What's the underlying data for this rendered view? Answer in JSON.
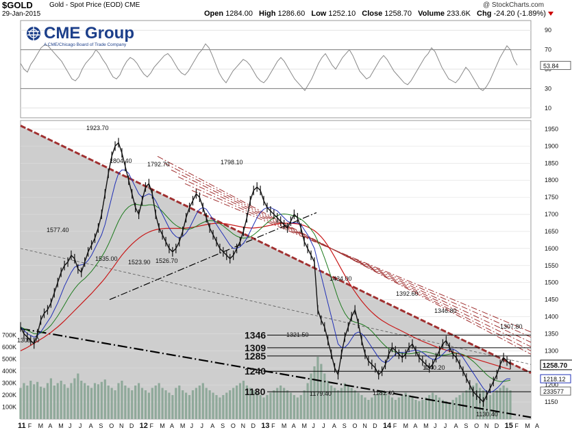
{
  "header": {
    "symbol": "$GOLD",
    "subtitle": "Gold - Spot Price (EOD)  CME",
    "date": "29-Jan-2015",
    "watermark": "@ StockCharts.com",
    "open_label": "Open",
    "open": "1284.00",
    "high_label": "High",
    "high": "1286.60",
    "low_label": "Low",
    "low": "1252.10",
    "close_label": "Close",
    "close": "1258.70",
    "volume_label": "Volume",
    "volume": "233.6K",
    "chg_label": "Chg",
    "chg": "-24.20 (-1.89%)"
  },
  "logo": {
    "name": "CME Group",
    "tagline": "A CME/Chicago Board of Trade Company"
  },
  "colors": {
    "price": "#111111",
    "ma_short": "#1f2fb5",
    "ma_mid": "#1d7a1d",
    "ma_long": "#c81818",
    "fill": "#c9c9c9",
    "volume": "#8fa99a",
    "channel": "#a03030",
    "rsi": "#888888"
  },
  "chart_data": {
    "type": "line",
    "title": "$GOLD Gold - Spot Price (EOD) CME",
    "rsi": {
      "ticks": [
        10,
        30,
        50,
        70,
        90
      ],
      "last_label": "53.84",
      "values": [
        56,
        50,
        47,
        55,
        60,
        66,
        72,
        75,
        74,
        70,
        66,
        62,
        58,
        52,
        46,
        40,
        38,
        42,
        50,
        56,
        60,
        64,
        70,
        66,
        60,
        55,
        48,
        42,
        40,
        44,
        52,
        58,
        62,
        60,
        56,
        50,
        45,
        42,
        46,
        52,
        56,
        60,
        64,
        66,
        62,
        56,
        50,
        46,
        44,
        48,
        54,
        60,
        66,
        70,
        76,
        72,
        64,
        55,
        46,
        40,
        36,
        42,
        48,
        52,
        56,
        60,
        58,
        54,
        48,
        42,
        38,
        36,
        40,
        46,
        52,
        58,
        62,
        58,
        52,
        46,
        40,
        36,
        32,
        28,
        34,
        40,
        48,
        56,
        62,
        66,
        60,
        54,
        50,
        56,
        62,
        66,
        70,
        64,
        56,
        48,
        44,
        40,
        42,
        48,
        54,
        60,
        64,
        60,
        54,
        48,
        44,
        40,
        36,
        34,
        38,
        44,
        50,
        56,
        62,
        66,
        72,
        68,
        60,
        52,
        46,
        40,
        38,
        36,
        40,
        46,
        52,
        48,
        42,
        36,
        30,
        28,
        32,
        38,
        46,
        54,
        62,
        68,
        74,
        70,
        60,
        54
      ]
    },
    "price": {
      "y_ticks": [
        1150,
        1200,
        1250,
        1300,
        1350,
        1400,
        1450,
        1500,
        1550,
        1600,
        1650,
        1700,
        1750,
        1800,
        1850,
        1900,
        1950
      ],
      "close_label": "1258.70",
      "ma_label": "1218.12",
      "values": [
        1370,
        1350,
        1340,
        1330,
        1320,
        1350,
        1390,
        1410,
        1420,
        1440,
        1470,
        1500,
        1530,
        1550,
        1560,
        1580,
        1570,
        1540,
        1530,
        1560,
        1590,
        1610,
        1630,
        1660,
        1700,
        1760,
        1820,
        1870,
        1900,
        1910,
        1880,
        1840,
        1800,
        1760,
        1720,
        1700,
        1740,
        1780,
        1790,
        1760,
        1700,
        1660,
        1640,
        1620,
        1600,
        1590,
        1600,
        1620,
        1650,
        1690,
        1720,
        1740,
        1760,
        1750,
        1720,
        1690,
        1660,
        1640,
        1620,
        1600,
        1590,
        1580,
        1570,
        1580,
        1600,
        1620,
        1650,
        1690,
        1740,
        1770,
        1780,
        1770,
        1740,
        1720,
        1710,
        1700,
        1690,
        1680,
        1670,
        1660,
        1680,
        1700,
        1690,
        1660,
        1620,
        1600,
        1580,
        1560,
        1420,
        1390,
        1370,
        1330,
        1290,
        1250,
        1230,
        1290,
        1340,
        1370,
        1400,
        1420,
        1380,
        1330,
        1290,
        1270,
        1260,
        1250,
        1230,
        1240,
        1260,
        1290,
        1310,
        1300,
        1290,
        1280,
        1290,
        1310,
        1320,
        1300,
        1280,
        1270,
        1260,
        1250,
        1260,
        1280,
        1300,
        1320,
        1330,
        1310,
        1290,
        1280,
        1260,
        1240,
        1220,
        1200,
        1180,
        1170,
        1160,
        1150,
        1170,
        1190,
        1210,
        1230,
        1260,
        1280,
        1270,
        1260
      ],
      "ma50": [
        1370,
        1360,
        1350,
        1345,
        1340,
        1345,
        1355,
        1370,
        1385,
        1400,
        1420,
        1440,
        1465,
        1490,
        1510,
        1530,
        1545,
        1550,
        1552,
        1555,
        1565,
        1580,
        1600,
        1620,
        1640,
        1670,
        1710,
        1750,
        1790,
        1820,
        1830,
        1830,
        1820,
        1800,
        1780,
        1760,
        1750,
        1755,
        1760,
        1755,
        1740,
        1720,
        1700,
        1680,
        1660,
        1645,
        1635,
        1630,
        1635,
        1645,
        1660,
        1680,
        1700,
        1715,
        1720,
        1715,
        1700,
        1685,
        1670,
        1655,
        1640,
        1625,
        1610,
        1600,
        1600,
        1605,
        1615,
        1630,
        1650,
        1670,
        1690,
        1705,
        1715,
        1720,
        1720,
        1715,
        1710,
        1700,
        1690,
        1680,
        1675,
        1675,
        1675,
        1670,
        1655,
        1640,
        1620,
        1600,
        1560,
        1520,
        1480,
        1440,
        1400,
        1360,
        1320,
        1310,
        1310,
        1320,
        1335,
        1350,
        1355,
        1350,
        1340,
        1325,
        1310,
        1295,
        1280,
        1270,
        1265,
        1270,
        1280,
        1290,
        1295,
        1295,
        1295,
        1298,
        1300,
        1302,
        1300,
        1295,
        1288,
        1280,
        1275,
        1275,
        1280,
        1290,
        1300,
        1305,
        1305,
        1300,
        1292,
        1280,
        1265,
        1250,
        1235,
        1220,
        1205,
        1190,
        1180,
        1178,
        1182,
        1190,
        1200,
        1212,
        1218,
        1218
      ],
      "ma100": [
        1370,
        1365,
        1360,
        1355,
        1350,
        1350,
        1352,
        1358,
        1365,
        1375,
        1388,
        1402,
        1418,
        1435,
        1452,
        1468,
        1482,
        1494,
        1504,
        1512,
        1522,
        1533,
        1546,
        1560,
        1575,
        1592,
        1612,
        1634,
        1658,
        1680,
        1698,
        1712,
        1722,
        1728,
        1730,
        1728,
        1726,
        1726,
        1728,
        1728,
        1725,
        1718,
        1708,
        1697,
        1686,
        1676,
        1668,
        1662,
        1658,
        1656,
        1657,
        1660,
        1665,
        1671,
        1676,
        1680,
        1682,
        1681,
        1678,
        1673,
        1666,
        1658,
        1650,
        1642,
        1636,
        1632,
        1630,
        1631,
        1634,
        1640,
        1648,
        1657,
        1666,
        1675,
        1683,
        1690,
        1696,
        1700,
        1701,
        1700,
        1698,
        1695,
        1691,
        1686,
        1678,
        1668,
        1656,
        1642,
        1622,
        1598,
        1572,
        1544,
        1514,
        1484,
        1454,
        1430,
        1410,
        1396,
        1388,
        1384,
        1381,
        1378,
        1373,
        1366,
        1357,
        1346,
        1335,
        1324,
        1314,
        1306,
        1300,
        1296,
        1294,
        1292,
        1291,
        1291,
        1292,
        1294,
        1296,
        1297,
        1297,
        1295,
        1292,
        1289,
        1287,
        1287,
        1288,
        1290,
        1292,
        1293,
        1292,
        1289,
        1284,
        1277,
        1269,
        1260,
        1250,
        1240,
        1230,
        1222,
        1216,
        1212,
        1210,
        1210,
        1212,
        1214
      ],
      "ma200": [
        1300,
        1305,
        1310,
        1316,
        1322,
        1328,
        1334,
        1340,
        1347,
        1354,
        1362,
        1370,
        1379,
        1388,
        1398,
        1408,
        1418,
        1428,
        1438,
        1448,
        1458,
        1468,
        1479,
        1490,
        1501,
        1513,
        1526,
        1539,
        1553,
        1567,
        1580,
        1592,
        1603,
        1613,
        1622,
        1630,
        1637,
        1643,
        1648,
        1652,
        1655,
        1657,
        1658,
        1659,
        1659,
        1659,
        1659,
        1659,
        1659,
        1660,
        1661,
        1662,
        1664,
        1666,
        1668,
        1670,
        1672,
        1673,
        1674,
        1674,
        1673,
        1672,
        1670,
        1668,
        1666,
        1664,
        1662,
        1661,
        1660,
        1660,
        1661,
        1662,
        1664,
        1666,
        1668,
        1670,
        1672,
        1673,
        1674,
        1674,
        1674,
        1673,
        1672,
        1670,
        1667,
        1663,
        1658,
        1652,
        1644,
        1634,
        1622,
        1608,
        1592,
        1575,
        1557,
        1539,
        1521,
        1504,
        1488,
        1473,
        1459,
        1446,
        1434,
        1423,
        1413,
        1404,
        1396,
        1389,
        1383,
        1377,
        1372,
        1367,
        1362,
        1357,
        1352,
        1347,
        1342,
        1337,
        1332,
        1328,
        1324,
        1320,
        1316,
        1312,
        1308,
        1305,
        1302,
        1299,
        1296,
        1293,
        1290,
        1287,
        1284,
        1281,
        1278,
        1275,
        1272,
        1269,
        1266,
        1263,
        1260,
        1257,
        1254,
        1251,
        1248,
        1246
      ]
    },
    "price_annotations": [
      "1923.70",
      "1804.40",
      "1792.70",
      "1798.10",
      "1577.40",
      "1535.00",
      "1523.90",
      "1526.70",
      "1434.00",
      "1392.60",
      "1346.80",
      "1307.80",
      "1321.50",
      "1240.20",
      "1179.40",
      "1181.40",
      "1130.40",
      "1309.10"
    ],
    "levels": [
      {
        "label": "1346",
        "value": 1346
      },
      {
        "label": "1309",
        "value": 1309
      },
      {
        "label": "1285",
        "value": 1285
      },
      {
        "label": "1240",
        "value": 1240
      },
      {
        "label": "1180",
        "value": 1180
      }
    ],
    "volume": {
      "ticks": [
        "100K",
        "200K",
        "300K",
        "400K",
        "500K",
        "600K",
        "700K"
      ],
      "tick_values": [
        100,
        200,
        300,
        400,
        500,
        600,
        700
      ],
      "last_label": "233577",
      "values": [
        260,
        300,
        280,
        320,
        290,
        310,
        270,
        260,
        300,
        340,
        280,
        300,
        320,
        290,
        260,
        300,
        340,
        380,
        320,
        300,
        280,
        260,
        300,
        290,
        310,
        330,
        280,
        260,
        240,
        300,
        320,
        280,
        260,
        240,
        280,
        300,
        260,
        240,
        220,
        260,
        280,
        300,
        260,
        240,
        220,
        200,
        260,
        280,
        240,
        220,
        200,
        240,
        260,
        280,
        300,
        260,
        240,
        220,
        200,
        180,
        200,
        220,
        240,
        260,
        280,
        300,
        320,
        280,
        260,
        240,
        220,
        200,
        180,
        200,
        220,
        240,
        260,
        280,
        260,
        240,
        220,
        200,
        180,
        200,
        240,
        300,
        380,
        440,
        520,
        460,
        380,
        320,
        280,
        260,
        240,
        260,
        300,
        280,
        260,
        240,
        220,
        200,
        180,
        160,
        180,
        200,
        220,
        240,
        220,
        200,
        180,
        160,
        180,
        200,
        220,
        200,
        180,
        160,
        150,
        160,
        180,
        200,
        220,
        200,
        180,
        160,
        150,
        140,
        160,
        180,
        200,
        220,
        240,
        260,
        280,
        300,
        260,
        240,
        220,
        200,
        220,
        240,
        260,
        280,
        260,
        240
      ]
    },
    "x_labels": [
      "11",
      "F",
      "M",
      "A",
      "M",
      "J",
      "J",
      "A",
      "S",
      "O",
      "N",
      "D",
      "12",
      "F",
      "M",
      "A",
      "M",
      "J",
      "J",
      "A",
      "S",
      "O",
      "N",
      "D",
      "13",
      "F",
      "M",
      "A",
      "M",
      "J",
      "J",
      "A",
      "S",
      "O",
      "N",
      "D",
      "14",
      "F",
      "M",
      "A",
      "M",
      "J",
      "J",
      "A",
      "S",
      "O",
      "N",
      "D",
      "15",
      "F",
      "M",
      "A"
    ],
    "x_bold": [
      "11",
      "12",
      "13",
      "14",
      "15"
    ]
  }
}
